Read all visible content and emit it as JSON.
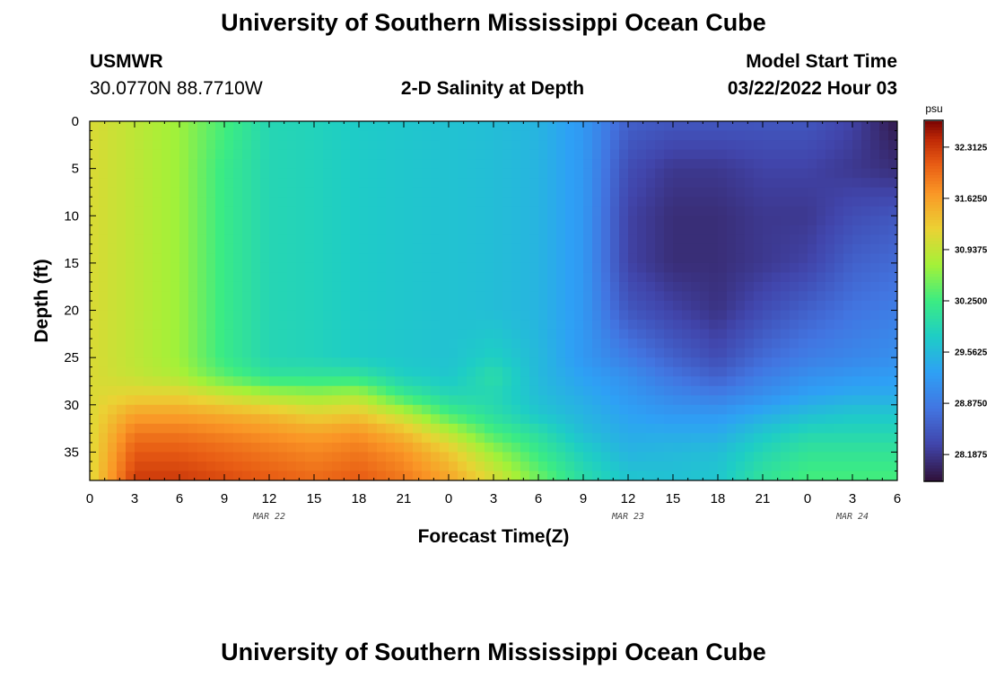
{
  "header": {
    "title": "University of Southern Mississippi Ocean Cube",
    "station": "USMWR",
    "coords": "30.0770N  88.7710W",
    "plot_title": "2-D Salinity at Depth",
    "model_start_label": "Model Start Time",
    "model_start_value": "03/22/2022 Hour 03"
  },
  "footer": {
    "title": "University of Southern Mississippi Ocean Cube"
  },
  "chart_data": {
    "type": "heatmap",
    "title": "2-D Salinity at Depth",
    "xlabel": "Forecast Time(Z)",
    "ylabel": "Depth (ft)",
    "x_tick_labels": [
      "0",
      "3",
      "6",
      "9",
      "12",
      "15",
      "18",
      "21",
      "0",
      "3",
      "6",
      "9",
      "12",
      "15",
      "18",
      "21",
      "0",
      "3",
      "6"
    ],
    "x_range_hours": [
      0,
      54
    ],
    "x_date_labels": [
      {
        "label": "MAR 22",
        "x_hour": 12
      },
      {
        "label": "MAR 23",
        "x_hour": 36
      },
      {
        "label": "MAR 24",
        "x_hour": 51
      }
    ],
    "y_ticks": [
      0,
      5,
      10,
      15,
      20,
      25,
      30,
      35
    ],
    "y_range": [
      0,
      38
    ],
    "y_inverted": true,
    "colorbar": {
      "unit": "psu",
      "labels": [
        "32.3125",
        "31.6250",
        "30.9375",
        "30.2500",
        "29.5625",
        "28.8750",
        "28.1875"
      ],
      "range": [
        27.84,
        32.66
      ],
      "colormap": "turbo"
    },
    "grid_hours": [
      0,
      3,
      6,
      9,
      12,
      15,
      18,
      21,
      24,
      27,
      30,
      33,
      36,
      39,
      42,
      45,
      48,
      51,
      54
    ],
    "grid_depths": [
      0,
      5,
      10,
      15,
      20,
      25,
      27,
      29,
      31,
      33,
      35,
      38
    ],
    "salinity_psu": [
      [
        31.1,
        31.1,
        31.1,
        31.1,
        31.1,
        31.1,
        31.1,
        31.1,
        31.1,
        31.1,
        31.1,
        31.1
      ],
      [
        30.9,
        30.9,
        30.9,
        30.9,
        30.9,
        30.9,
        30.95,
        31.2,
        31.6,
        31.9,
        32.1,
        32.3
      ],
      [
        30.7,
        30.7,
        30.7,
        30.7,
        30.7,
        30.7,
        30.8,
        31.2,
        31.6,
        31.9,
        32.1,
        32.3
      ],
      [
        30.3,
        30.2,
        30.2,
        30.2,
        30.2,
        30.2,
        30.4,
        31.0,
        31.5,
        31.8,
        32.0,
        32.2
      ],
      [
        29.9,
        29.9,
        29.9,
        29.9,
        29.9,
        29.9,
        30.1,
        30.8,
        31.4,
        31.7,
        31.9,
        32.1
      ],
      [
        29.85,
        29.85,
        29.85,
        29.85,
        29.85,
        29.85,
        30.1,
        30.7,
        31.2,
        31.6,
        31.8,
        32.0
      ],
      [
        29.75,
        29.75,
        29.75,
        29.75,
        29.75,
        29.75,
        30.1,
        30.8,
        31.3,
        31.7,
        31.9,
        32.1
      ],
      [
        29.7,
        29.7,
        29.7,
        29.7,
        29.7,
        29.7,
        29.8,
        30.2,
        30.9,
        31.4,
        31.7,
        31.9
      ],
      [
        29.65,
        29.65,
        29.65,
        29.65,
        29.65,
        29.65,
        29.7,
        29.9,
        30.3,
        30.9,
        31.3,
        31.6
      ],
      [
        29.6,
        29.6,
        29.6,
        29.6,
        29.6,
        29.8,
        30.0,
        29.9,
        30.0,
        30.3,
        30.7,
        31.1
      ],
      [
        29.5,
        29.5,
        29.5,
        29.5,
        29.5,
        29.55,
        29.55,
        29.6,
        29.7,
        30.0,
        30.2,
        30.5
      ],
      [
        29.2,
        29.2,
        29.2,
        29.2,
        29.2,
        29.2,
        29.3,
        29.4,
        29.5,
        29.6,
        29.8,
        30.0
      ],
      [
        28.6,
        28.4,
        28.3,
        28.3,
        28.5,
        28.9,
        29.1,
        29.2,
        29.3,
        29.4,
        29.5,
        29.7
      ],
      [
        28.5,
        28.2,
        28.1,
        28.1,
        28.3,
        28.6,
        28.8,
        29.0,
        29.2,
        29.4,
        29.55,
        29.65
      ],
      [
        28.5,
        28.2,
        28.1,
        28.1,
        28.15,
        28.4,
        28.6,
        28.9,
        29.2,
        29.4,
        29.6,
        29.7
      ],
      [
        28.5,
        28.3,
        28.2,
        28.2,
        28.4,
        28.7,
        28.9,
        29.1,
        29.4,
        29.7,
        29.9,
        30.1
      ],
      [
        28.5,
        28.3,
        28.2,
        28.3,
        28.6,
        28.9,
        29.1,
        29.3,
        29.6,
        29.9,
        30.1,
        30.3
      ],
      [
        28.3,
        28.2,
        28.4,
        28.6,
        28.8,
        29.0,
        29.2,
        29.4,
        29.7,
        29.9,
        30.1,
        30.3
      ],
      [
        27.9,
        28.1,
        28.5,
        28.7,
        28.9,
        29.1,
        29.25,
        29.4,
        29.7,
        29.9,
        30.1,
        30.3
      ]
    ]
  }
}
